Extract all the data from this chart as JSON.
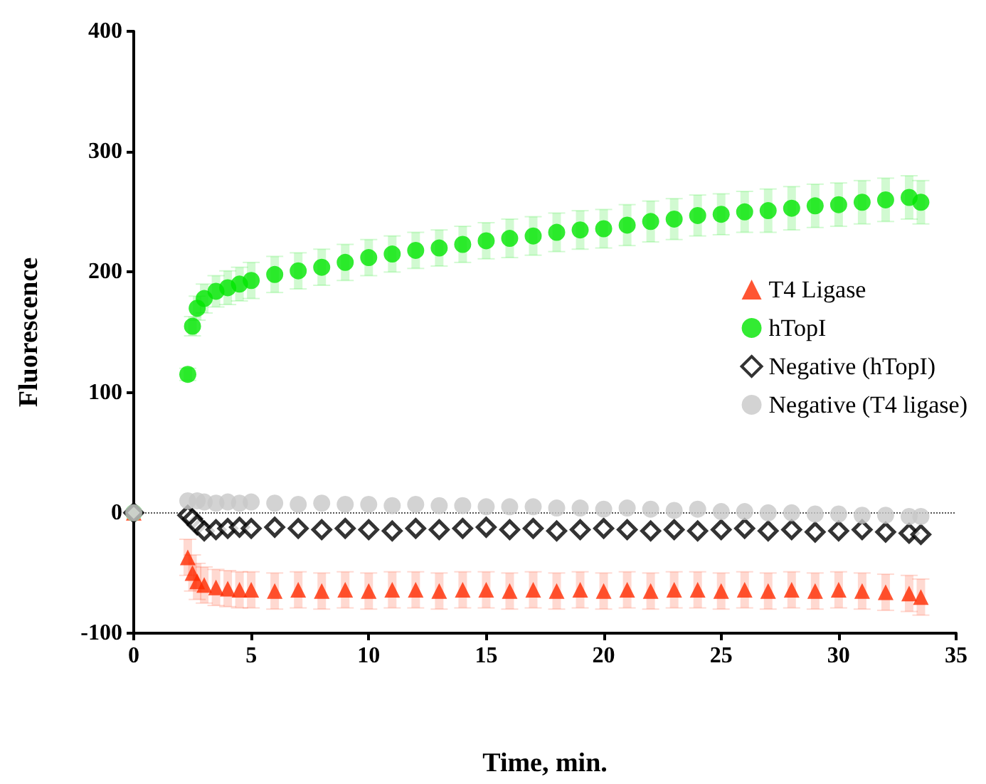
{
  "chart_data": {
    "type": "scatter",
    "xlabel": "Time, min.",
    "ylabel": "Fluorescence",
    "x": [
      0,
      2.3,
      2.5,
      2.7,
      3,
      3.5,
      4,
      4.5,
      5,
      6,
      7,
      8,
      9,
      10,
      11,
      12,
      13,
      14,
      15,
      16,
      17,
      18,
      19,
      20,
      21,
      22,
      23,
      24,
      25,
      26,
      27,
      28,
      29,
      30,
      31,
      32,
      33,
      33.5
    ],
    "xlim": [
      0,
      35
    ],
    "xticks": [
      0,
      5,
      10,
      15,
      20,
      25,
      30,
      35
    ],
    "ylim": [
      -100,
      400
    ],
    "yticks": [
      -100,
      0,
      100,
      200,
      300,
      400
    ],
    "grid": false,
    "legend": "right",
    "ref_lines": [
      {
        "axis": "y",
        "value": 0,
        "label": null,
        "color": "#555555",
        "line_style": "dotted"
      }
    ],
    "series": [
      {
        "name": "T4 Ligase",
        "color": "#ff2a00",
        "marker": "triangle",
        "values": [
          0,
          -37,
          -50,
          -57,
          -60,
          -62,
          -63,
          -64,
          -64,
          -65,
          -64,
          -65,
          -64,
          -65,
          -64,
          -64,
          -65,
          -64,
          -64,
          -65,
          -64,
          -65,
          -64,
          -65,
          -64,
          -65,
          -64,
          -64,
          -65,
          -64,
          -65,
          -64,
          -65,
          -64,
          -65,
          -66,
          -67,
          -70
        ],
        "errors": [
          null,
          15,
          15,
          15,
          15,
          15,
          15,
          15,
          15,
          15,
          15,
          15,
          15,
          15,
          15,
          15,
          15,
          15,
          15,
          15,
          15,
          15,
          15,
          15,
          15,
          15,
          15,
          15,
          15,
          15,
          15,
          15,
          15,
          15,
          15,
          15,
          15,
          15
        ]
      },
      {
        "name": "hTopI",
        "color": "#00e600",
        "marker": "circle",
        "values": [
          0,
          115,
          155,
          170,
          178,
          184,
          187,
          190,
          193,
          198,
          201,
          204,
          208,
          212,
          215,
          218,
          220,
          223,
          226,
          228,
          230,
          233,
          235,
          236,
          239,
          242,
          244,
          247,
          248,
          250,
          251,
          253,
          255,
          256,
          258,
          260,
          262,
          258
        ],
        "errors": [
          null,
          5,
          8,
          10,
          12,
          13,
          14,
          14,
          15,
          15,
          15,
          15,
          15,
          15,
          15,
          15,
          15,
          15,
          15,
          16,
          16,
          16,
          16,
          16,
          17,
          17,
          17,
          17,
          17,
          17,
          18,
          18,
          18,
          18,
          18,
          18,
          18,
          18
        ]
      },
      {
        "name": "Negative (hTopI)",
        "color": "#000000",
        "marker": "diamond",
        "values": [
          0,
          -2,
          -5,
          -10,
          -15,
          -14,
          -13,
          -12,
          -13,
          -12,
          -13,
          -14,
          -13,
          -14,
          -15,
          -13,
          -14,
          -13,
          -12,
          -14,
          -13,
          -15,
          -14,
          -13,
          -14,
          -15,
          -14,
          -15,
          -14,
          -13,
          -15,
          -14,
          -16,
          -15,
          -14,
          -16,
          -17,
          -18
        ]
      },
      {
        "name": "Negative (T4 ligase)",
        "color": "#c8c8c8",
        "marker": "circle",
        "values": [
          0,
          10,
          null,
          10,
          9,
          8,
          9,
          8,
          9,
          8,
          7,
          8,
          7,
          7,
          6,
          7,
          6,
          6,
          5,
          5,
          5,
          4,
          4,
          3,
          4,
          3,
          2,
          3,
          1,
          1,
          0,
          0,
          -1,
          -1,
          -2,
          -2,
          -3,
          -3
        ]
      }
    ]
  }
}
